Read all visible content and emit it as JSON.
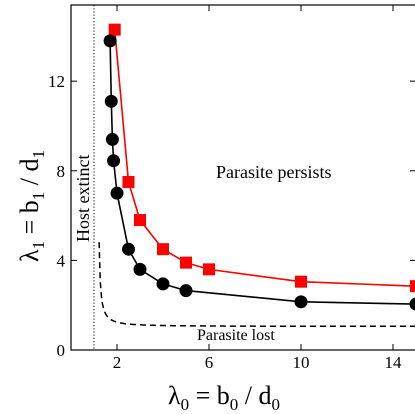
{
  "chart_data": {
    "type": "line",
    "title": "",
    "xlabel": {
      "main": "λ",
      "sub1": "0",
      "mid": " = b",
      "sub2": "0",
      "tail": " / d",
      "sub3": "0"
    },
    "ylabel": {
      "main": "λ",
      "sub1": "1",
      "mid": " = b",
      "sub2": "1",
      "tail": " / d",
      "sub3": "1"
    },
    "xlim": [
      0,
      15
    ],
    "ylim": [
      0,
      15.4
    ],
    "xticks": [
      2,
      6,
      10,
      14
    ],
    "yticks": [
      0,
      4,
      8,
      12
    ],
    "grid": false,
    "series": [
      {
        "color": "#ff0000",
        "marker": "square",
        "x": [
          1.9,
          2.5,
          3.0,
          4.0,
          5.0,
          6.0,
          10.0,
          15.0
        ],
        "y": [
          14.3,
          7.5,
          5.8,
          4.5,
          3.9,
          3.6,
          3.05,
          2.85
        ]
      },
      {
        "color": "#000000",
        "marker": "circle",
        "x": [
          1.7,
          1.75,
          1.8,
          1.85,
          2.0,
          2.5,
          3.0,
          4.0,
          5.0,
          10.0,
          15.0
        ],
        "y": [
          13.8,
          11.1,
          9.4,
          8.45,
          7.0,
          4.5,
          3.6,
          2.95,
          2.65,
          2.15,
          2.05
        ]
      }
    ],
    "boundary_dashed": {
      "color": "#000000",
      "style": "dashed"
    },
    "boundary_dotted": {
      "x": 1.0,
      "color": "#000000",
      "style": "dotted"
    },
    "annotations": {
      "parasite_persists": "Parasite persists",
      "parasite_lost": "Parasite lost",
      "host_extinct": "Host extinct"
    }
  }
}
